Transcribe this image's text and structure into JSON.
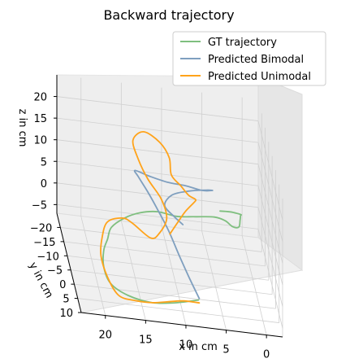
{
  "chart_data": {
    "type": "line",
    "projection": "3d",
    "title": "Backward trajectory",
    "xlabel": "x in cm",
    "ylabel": "y in cm",
    "zlabel": "z in cm",
    "xlim": [
      -2,
      23
    ],
    "ylim": [
      -25,
      10
    ],
    "zlim": [
      -7,
      25
    ],
    "xticks": [
      "20",
      "15",
      "10",
      "5",
      "0"
    ],
    "xtick_values": [
      20,
      15,
      10,
      5,
      0
    ],
    "yticks": [
      "−20",
      "−15",
      "−10",
      "−5",
      "0",
      "5",
      "10"
    ],
    "ytick_values": [
      -20,
      -15,
      -10,
      -5,
      0,
      5,
      10
    ],
    "zticks": [
      "−5",
      "0",
      "5",
      "10",
      "15",
      "20"
    ],
    "ztick_values": [
      -5,
      0,
      5,
      10,
      15,
      20
    ],
    "grid": true,
    "legend_position": "top-right",
    "series": [
      {
        "name": "GT trajectory",
        "color": "#7fbf7f",
        "points": [
          [
            3,
            -22,
            0
          ],
          [
            2,
            -19,
            2
          ],
          [
            1.5,
            -14,
            5
          ],
          [
            1.5,
            -9,
            8
          ],
          [
            2,
            -4,
            11
          ],
          [
            2.5,
            1,
            13
          ],
          [
            3,
            5,
            14
          ],
          [
            3.5,
            2,
            12
          ],
          [
            4,
            -3,
            10
          ],
          [
            5,
            -7,
            8
          ],
          [
            7,
            -11,
            5
          ],
          [
            9,
            -15,
            2
          ],
          [
            11,
            -19,
            0
          ],
          [
            13,
            -21,
            -2
          ],
          [
            15,
            -20,
            -3
          ],
          [
            17,
            -16,
            -3
          ],
          [
            18,
            -10,
            -2
          ],
          [
            19,
            -4,
            -1
          ],
          [
            19.5,
            2,
            -1
          ],
          [
            19,
            6,
            -2
          ],
          [
            17,
            8,
            -3
          ],
          [
            14,
            8,
            -4
          ],
          [
            11,
            7,
            -4
          ],
          [
            8,
            5,
            -4
          ]
        ]
      },
      {
        "name": "Predicted Bimodal",
        "color": "#7f9fbf",
        "points": [
          [
            8,
            6,
            -3
          ],
          [
            9,
            4,
            0
          ],
          [
            10,
            1,
            3
          ],
          [
            11,
            -3,
            6
          ],
          [
            12,
            -7,
            8
          ],
          [
            13,
            -10,
            10
          ],
          [
            14,
            -12,
            12
          ],
          [
            14.5,
            -11,
            14
          ],
          [
            13,
            -8,
            15
          ],
          [
            11,
            -5,
            16
          ],
          [
            9,
            -3,
            17
          ],
          [
            7,
            -2,
            17
          ],
          [
            5.5,
            -4,
            16
          ],
          [
            6,
            -7,
            14
          ],
          [
            8,
            -9,
            12
          ],
          [
            10,
            -10,
            10
          ],
          [
            11,
            -9,
            8
          ],
          [
            10,
            -7,
            7
          ],
          [
            9,
            -6,
            6
          ]
        ]
      },
      {
        "name": "Predicted Unimodal",
        "color": "#ffa31a",
        "points": [
          [
            8,
            6,
            -4
          ],
          [
            10,
            6,
            -4
          ],
          [
            12,
            7,
            -4
          ],
          [
            14,
            8,
            -4
          ],
          [
            16,
            8,
            -4
          ],
          [
            18,
            7,
            -4
          ],
          [
            19,
            3,
            -3
          ],
          [
            19.5,
            -2,
            -1
          ],
          [
            19,
            -6,
            1
          ],
          [
            18,
            -10,
            2
          ],
          [
            16,
            -12,
            2
          ],
          [
            15,
            -9,
            3
          ],
          [
            13,
            -6,
            2
          ],
          [
            12,
            -5,
            4
          ],
          [
            11,
            -6,
            7
          ],
          [
            11.5,
            -8,
            10
          ],
          [
            13,
            -10,
            13
          ],
          [
            14,
            -12,
            16
          ],
          [
            14.5,
            -14,
            19
          ],
          [
            13,
            -16,
            20
          ],
          [
            11,
            -16,
            18
          ],
          [
            10,
            -14,
            16
          ],
          [
            10,
            -11,
            14
          ],
          [
            9,
            -9,
            13
          ],
          [
            8,
            -9,
            11
          ],
          [
            7,
            -11,
            9
          ],
          [
            7,
            -13,
            7
          ],
          [
            8,
            -14,
            4
          ],
          [
            9,
            -13,
            2
          ],
          [
            10,
            -13,
            -1
          ]
        ]
      }
    ]
  }
}
